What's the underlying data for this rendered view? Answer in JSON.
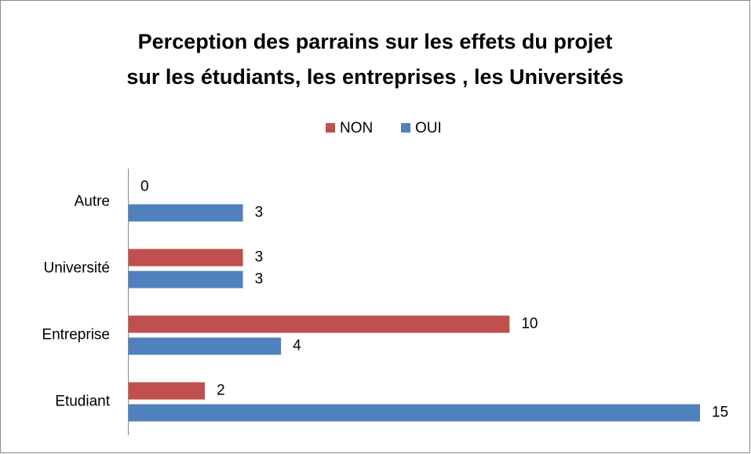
{
  "chart_data": {
    "type": "hbar",
    "title": [
      "Perception des parrains sur les effets du projet",
      "sur les étudiants, les entreprises , les Universités"
    ],
    "categories": [
      "Etudiant",
      "Entreprise",
      "Université",
      "Autre"
    ],
    "series": [
      {
        "name": "NON",
        "color": "#c0504d",
        "values": [
          2,
          10,
          3,
          0
        ]
      },
      {
        "name": "OUI",
        "color": "#4f81bd",
        "values": [
          15,
          4,
          3,
          3
        ]
      }
    ],
    "xlim": [
      0,
      15
    ]
  }
}
